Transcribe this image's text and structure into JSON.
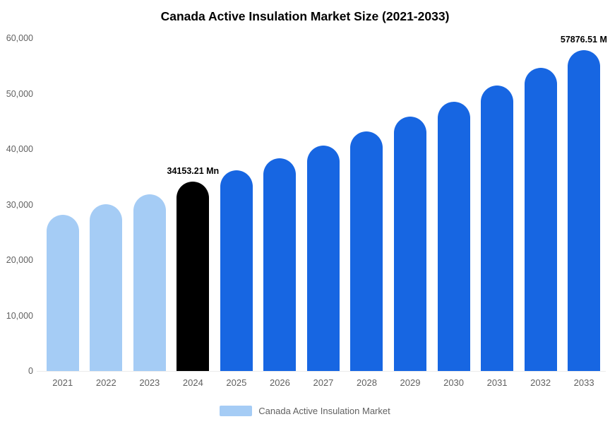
{
  "title": "Canada Active Insulation Market Size (2021-2033)",
  "colors": {
    "historical": "#A5CCF5",
    "current": "#000000",
    "forecast": "#1766E2",
    "axis_text": "#616161",
    "annotation_text": "#000000"
  },
  "y_axis": {
    "max": 60000,
    "ticks": [
      {
        "value": 60000,
        "label": "60,000"
      },
      {
        "value": 50000,
        "label": "50,000"
      },
      {
        "value": 40000,
        "label": "40,000"
      },
      {
        "value": 30000,
        "label": "30,000"
      },
      {
        "value": 20000,
        "label": "20,000"
      },
      {
        "value": 10000,
        "label": "10,000"
      },
      {
        "value": 0,
        "label": "0"
      }
    ]
  },
  "legend": {
    "label": "Canada Active Insulation Market",
    "swatch_color": "#A5CCF5"
  },
  "chart_data": {
    "type": "bar",
    "title": "Canada Active Insulation Market Size (2021-2033)",
    "series_name": "Canada Active Insulation Market",
    "categories": [
      "2021",
      "2022",
      "2023",
      "2024",
      "2025",
      "2026",
      "2027",
      "2028",
      "2029",
      "2030",
      "2031",
      "2032",
      "2033"
    ],
    "values": [
      28200,
      30000,
      31900,
      34153.21,
      36200,
      38400,
      40700,
      43200,
      45800,
      48500,
      51500,
      54600,
      57876.51
    ],
    "bar_roles": [
      "historical",
      "historical",
      "historical",
      "current",
      "forecast",
      "forecast",
      "forecast",
      "forecast",
      "forecast",
      "forecast",
      "forecast",
      "forecast",
      "forecast"
    ],
    "annotations": [
      {
        "category": "2024",
        "text": "34153.21 Mn",
        "align": "center"
      },
      {
        "category": "2033",
        "text": "57876.51 M",
        "align": "end"
      }
    ],
    "xlabel": "",
    "ylabel": "",
    "ylim": [
      0,
      60000
    ],
    "grid": false,
    "legend_position": "bottom"
  }
}
